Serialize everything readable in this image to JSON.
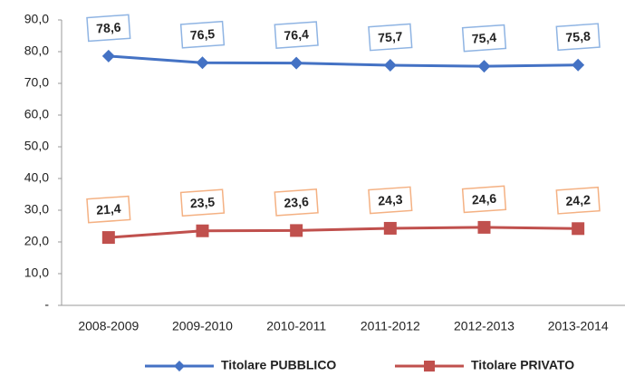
{
  "chart_data": {
    "type": "line",
    "categories": [
      "2008-2009",
      "2009-2010",
      "2010-2011",
      "2011-2012",
      "2012-2013",
      "2013-2014"
    ],
    "series": [
      {
        "name": "Titolare PUBBLICO",
        "color": "#4472c4",
        "values": [
          78.6,
          76.5,
          76.4,
          75.7,
          75.4,
          75.8
        ],
        "value_labels": [
          "78,6",
          "76,5",
          "76,4",
          "75,7",
          "75,4",
          "75,8"
        ]
      },
      {
        "name": "Titolare PRIVATO",
        "color": "#c0504d",
        "values": [
          21.4,
          23.5,
          23.6,
          24.3,
          24.6,
          24.2
        ],
        "value_labels": [
          "21,4",
          "23,5",
          "23,6",
          "24,3",
          "24,6",
          "24,2"
        ]
      }
    ],
    "ylim": [
      0,
      90
    ],
    "yticks": [
      {
        "value": 0,
        "label": "-"
      },
      {
        "value": 10,
        "label": "10,0"
      },
      {
        "value": 20,
        "label": "20,0"
      },
      {
        "value": 30,
        "label": "30,0"
      },
      {
        "value": 40,
        "label": "40,0"
      },
      {
        "value": 50,
        "label": "50,0"
      },
      {
        "value": 60,
        "label": "60,0"
      },
      {
        "value": 70,
        "label": "70,0"
      },
      {
        "value": 80,
        "label": "80,0"
      },
      {
        "value": 90,
        "label": "90,0"
      }
    ],
    "legend": "bottom"
  }
}
